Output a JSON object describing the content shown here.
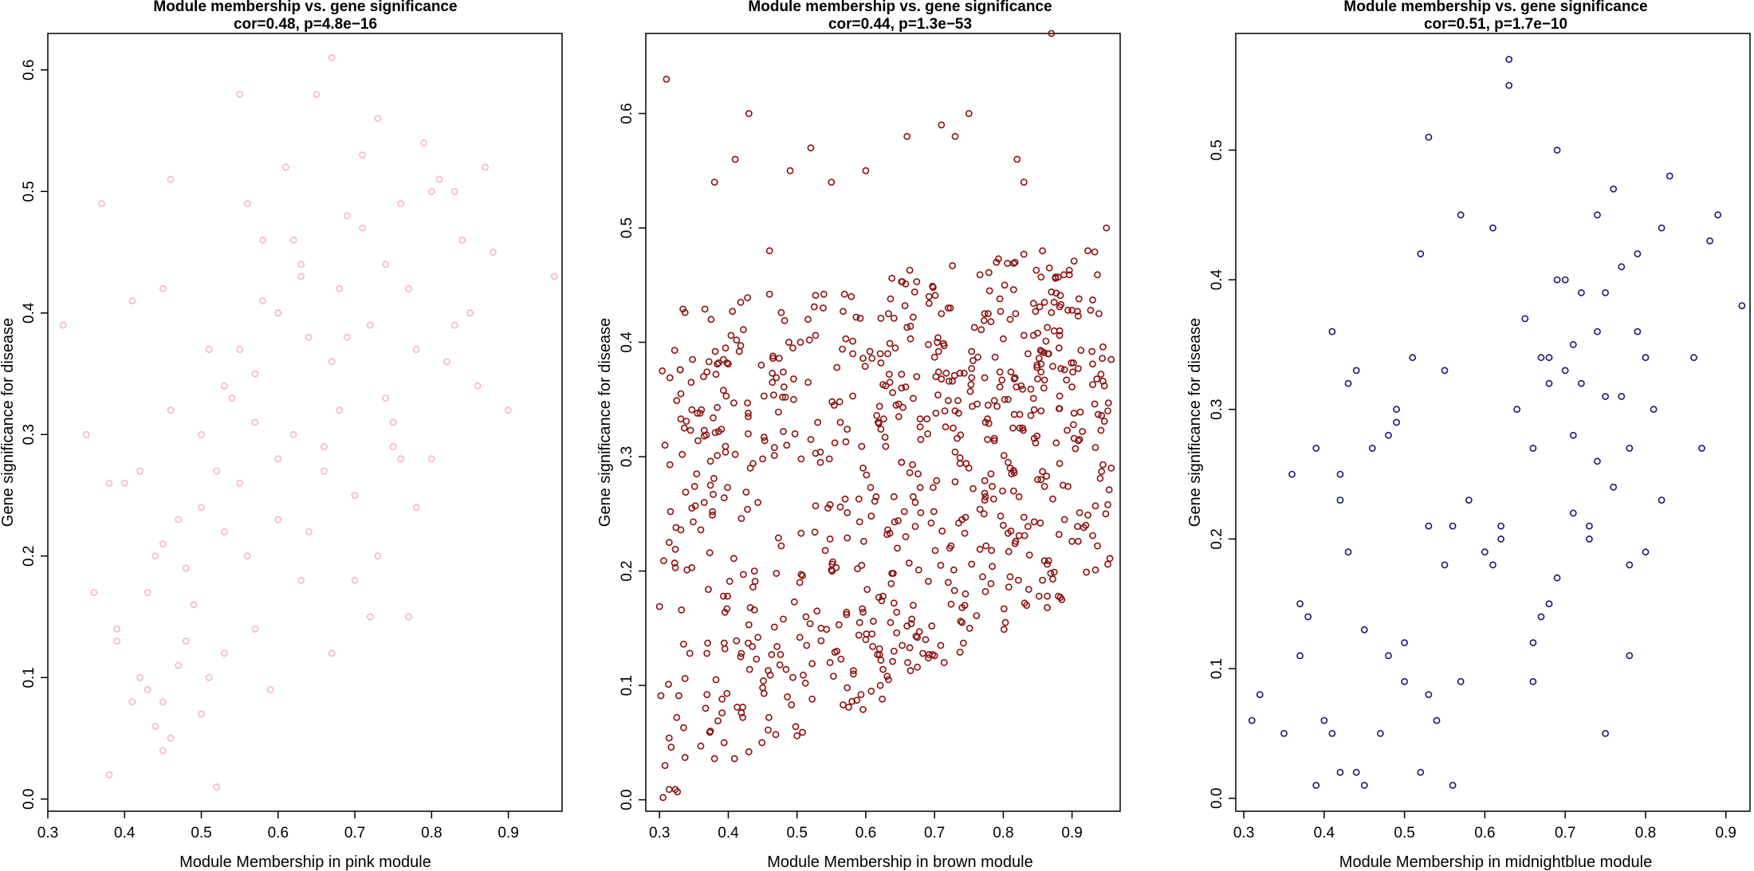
{
  "chart_data": [
    {
      "type": "scatter",
      "title": "Module membership vs. gene significance",
      "subtitle": "cor=0.48, p=4.8e−16",
      "xlabel": "Module Membership in pink module",
      "ylabel": "Gene significance for disease",
      "xlim": [
        0.3,
        0.97
      ],
      "ylim": [
        -0.01,
        0.63
      ],
      "xticks": [
        "0.3",
        "0.4",
        "0.5",
        "0.6",
        "0.7",
        "0.8",
        "0.9"
      ],
      "yticks": [
        "0.0",
        "0.1",
        "0.2",
        "0.3",
        "0.4",
        "0.5",
        "0.6"
      ],
      "color": "#F4B6C2",
      "series": [
        {
          "x": [
            0.32,
            0.35,
            0.36,
            0.37,
            0.38,
            0.38,
            0.39,
            0.39,
            0.4,
            0.41,
            0.41,
            0.42,
            0.42,
            0.43,
            0.43,
            0.44,
            0.44,
            0.45,
            0.45,
            0.45,
            0.46,
            0.46,
            0.46,
            0.47,
            0.47,
            0.48,
            0.49,
            0.5,
            0.5,
            0.51,
            0.51,
            0.52,
            0.53,
            0.53,
            0.54,
            0.55,
            0.55,
            0.56,
            0.57,
            0.57,
            0.58,
            0.59,
            0.6,
            0.6,
            0.61,
            0.62,
            0.63,
            0.63,
            0.64,
            0.65,
            0.66,
            0.67,
            0.67,
            0.68,
            0.68,
            0.69,
            0.7,
            0.71,
            0.72,
            0.73,
            0.73,
            0.74,
            0.75,
            0.76,
            0.77,
            0.77,
            0.78,
            0.79,
            0.8,
            0.81,
            0.82,
            0.83,
            0.84,
            0.85,
            0.86,
            0.87,
            0.88,
            0.9,
            0.96,
            0.45,
            0.5,
            0.53,
            0.56,
            0.58,
            0.62,
            0.66,
            0.7,
            0.74,
            0.78,
            0.55,
            0.6,
            0.64,
            0.69,
            0.72,
            0.75,
            0.8,
            0.48,
            0.52,
            0.57,
            0.63,
            0.67,
            0.71,
            0.76,
            0.83
          ],
          "y": [
            0.39,
            0.3,
            0.17,
            0.49,
            0.02,
            0.26,
            0.14,
            0.13,
            0.26,
            0.08,
            0.41,
            0.1,
            0.27,
            0.09,
            0.17,
            0.06,
            0.2,
            0.04,
            0.21,
            0.42,
            0.32,
            0.05,
            0.51,
            0.11,
            0.23,
            0.19,
            0.16,
            0.07,
            0.3,
            0.1,
            0.37,
            0.01,
            0.22,
            0.12,
            0.33,
            0.58,
            0.26,
            0.49,
            0.14,
            0.35,
            0.46,
            0.09,
            0.4,
            0.23,
            0.52,
            0.3,
            0.44,
            0.18,
            0.38,
            0.58,
            0.29,
            0.61,
            0.12,
            0.42,
            0.32,
            0.48,
            0.25,
            0.53,
            0.39,
            0.56,
            0.2,
            0.44,
            0.31,
            0.49,
            0.15,
            0.42,
            0.37,
            0.54,
            0.28,
            0.51,
            0.36,
            0.5,
            0.46,
            0.4,
            0.34,
            0.52,
            0.45,
            0.32,
            0.43,
            0.08,
            0.24,
            0.34,
            0.2,
            0.41,
            0.46,
            0.27,
            0.18,
            0.33,
            0.24,
            0.37,
            0.28,
            0.22,
            0.38,
            0.15,
            0.29,
            0.5,
            0.13,
            0.27,
            0.31,
            0.43,
            0.36,
            0.47,
            0.28,
            0.39
          ]
        }
      ]
    },
    {
      "type": "scatter",
      "title": "Module membership vs. gene significance",
      "subtitle": "cor=0.44, p=1.3e−53",
      "xlabel": "Module Membership in brown module",
      "ylabel": "Gene significance for disease",
      "xlim": [
        0.28,
        0.97
      ],
      "ylim": [
        -0.01,
        0.67
      ],
      "xticks": [
        "0.3",
        "0.4",
        "0.5",
        "0.6",
        "0.7",
        "0.8",
        "0.9"
      ],
      "yticks": [
        "0.0",
        "0.1",
        "0.2",
        "0.3",
        "0.4",
        "0.5",
        "0.6"
      ],
      "color": "#8B1010",
      "series": [
        {
          "x": [
            0.31,
            0.43,
            0.49,
            0.52,
            0.55,
            0.6,
            0.66,
            0.71,
            0.73,
            0.75,
            0.82,
            0.83,
            0.87,
            0.41,
            0.46,
            0.38,
            0.72,
            0.79,
            0.95
          ],
          "y": [
            0.63,
            0.6,
            0.55,
            0.57,
            0.54,
            0.55,
            0.58,
            0.59,
            0.58,
            0.6,
            0.56,
            0.54,
            0.67,
            0.56,
            0.48,
            0.54,
            0.43,
            0.47,
            0.5
          ]
        }
      ]
    },
    {
      "type": "scatter",
      "title": "Module membership vs. gene significance",
      "subtitle": "cor=0.51, p=1.7e−10",
      "xlabel": "Module Membership in midnightblue module",
      "ylabel": "Gene significance for disease",
      "xlim": [
        0.29,
        0.93
      ],
      "ylim": [
        -0.01,
        0.59
      ],
      "xticks": [
        "0.3",
        "0.4",
        "0.5",
        "0.6",
        "0.7",
        "0.8",
        "0.9"
      ],
      "yticks": [
        "0.0",
        "0.1",
        "0.2",
        "0.3",
        "0.4",
        "0.5"
      ],
      "color": "#191970",
      "series": [
        {
          "x": [
            0.31,
            0.32,
            0.35,
            0.36,
            0.37,
            0.37,
            0.38,
            0.39,
            0.39,
            0.4,
            0.41,
            0.41,
            0.42,
            0.42,
            0.42,
            0.43,
            0.43,
            0.44,
            0.44,
            0.45,
            0.45,
            0.46,
            0.47,
            0.48,
            0.48,
            0.49,
            0.49,
            0.5,
            0.5,
            0.51,
            0.52,
            0.52,
            0.53,
            0.53,
            0.53,
            0.54,
            0.55,
            0.55,
            0.56,
            0.56,
            0.57,
            0.57,
            0.58,
            0.6,
            0.61,
            0.61,
            0.62,
            0.63,
            0.63,
            0.64,
            0.65,
            0.66,
            0.66,
            0.67,
            0.67,
            0.68,
            0.68,
            0.69,
            0.69,
            0.7,
            0.7,
            0.71,
            0.71,
            0.72,
            0.72,
            0.73,
            0.73,
            0.74,
            0.74,
            0.75,
            0.75,
            0.76,
            0.76,
            0.77,
            0.77,
            0.78,
            0.78,
            0.79,
            0.79,
            0.8,
            0.81,
            0.82,
            0.82,
            0.83,
            0.86,
            0.87,
            0.88,
            0.89,
            0.92,
            0.66,
            0.71,
            0.74,
            0.68,
            0.8,
            0.62,
            0.69,
            0.75,
            0.78
          ],
          "y": [
            0.06,
            0.08,
            0.05,
            0.25,
            0.15,
            0.11,
            0.14,
            0.01,
            0.27,
            0.06,
            0.05,
            0.36,
            0.23,
            0.02,
            0.25,
            0.32,
            0.19,
            0.33,
            0.02,
            0.13,
            0.01,
            0.27,
            0.05,
            0.28,
            0.11,
            0.3,
            0.29,
            0.12,
            0.09,
            0.34,
            0.02,
            0.42,
            0.08,
            0.51,
            0.21,
            0.06,
            0.18,
            0.33,
            0.21,
            0.01,
            0.09,
            0.45,
            0.23,
            0.19,
            0.18,
            0.44,
            0.2,
            0.57,
            0.55,
            0.3,
            0.37,
            0.27,
            0.09,
            0.34,
            0.14,
            0.34,
            0.15,
            0.5,
            0.17,
            0.33,
            0.4,
            0.35,
            0.28,
            0.32,
            0.39,
            0.2,
            0.21,
            0.36,
            0.45,
            0.39,
            0.05,
            0.47,
            0.24,
            0.31,
            0.41,
            0.18,
            0.27,
            0.36,
            0.42,
            0.34,
            0.3,
            0.44,
            0.23,
            0.48,
            0.34,
            0.27,
            0.43,
            0.45,
            0.38,
            0.12,
            0.22,
            0.26,
            0.32,
            0.19,
            0.21,
            0.4,
            0.31,
            0.11
          ]
        }
      ]
    }
  ]
}
